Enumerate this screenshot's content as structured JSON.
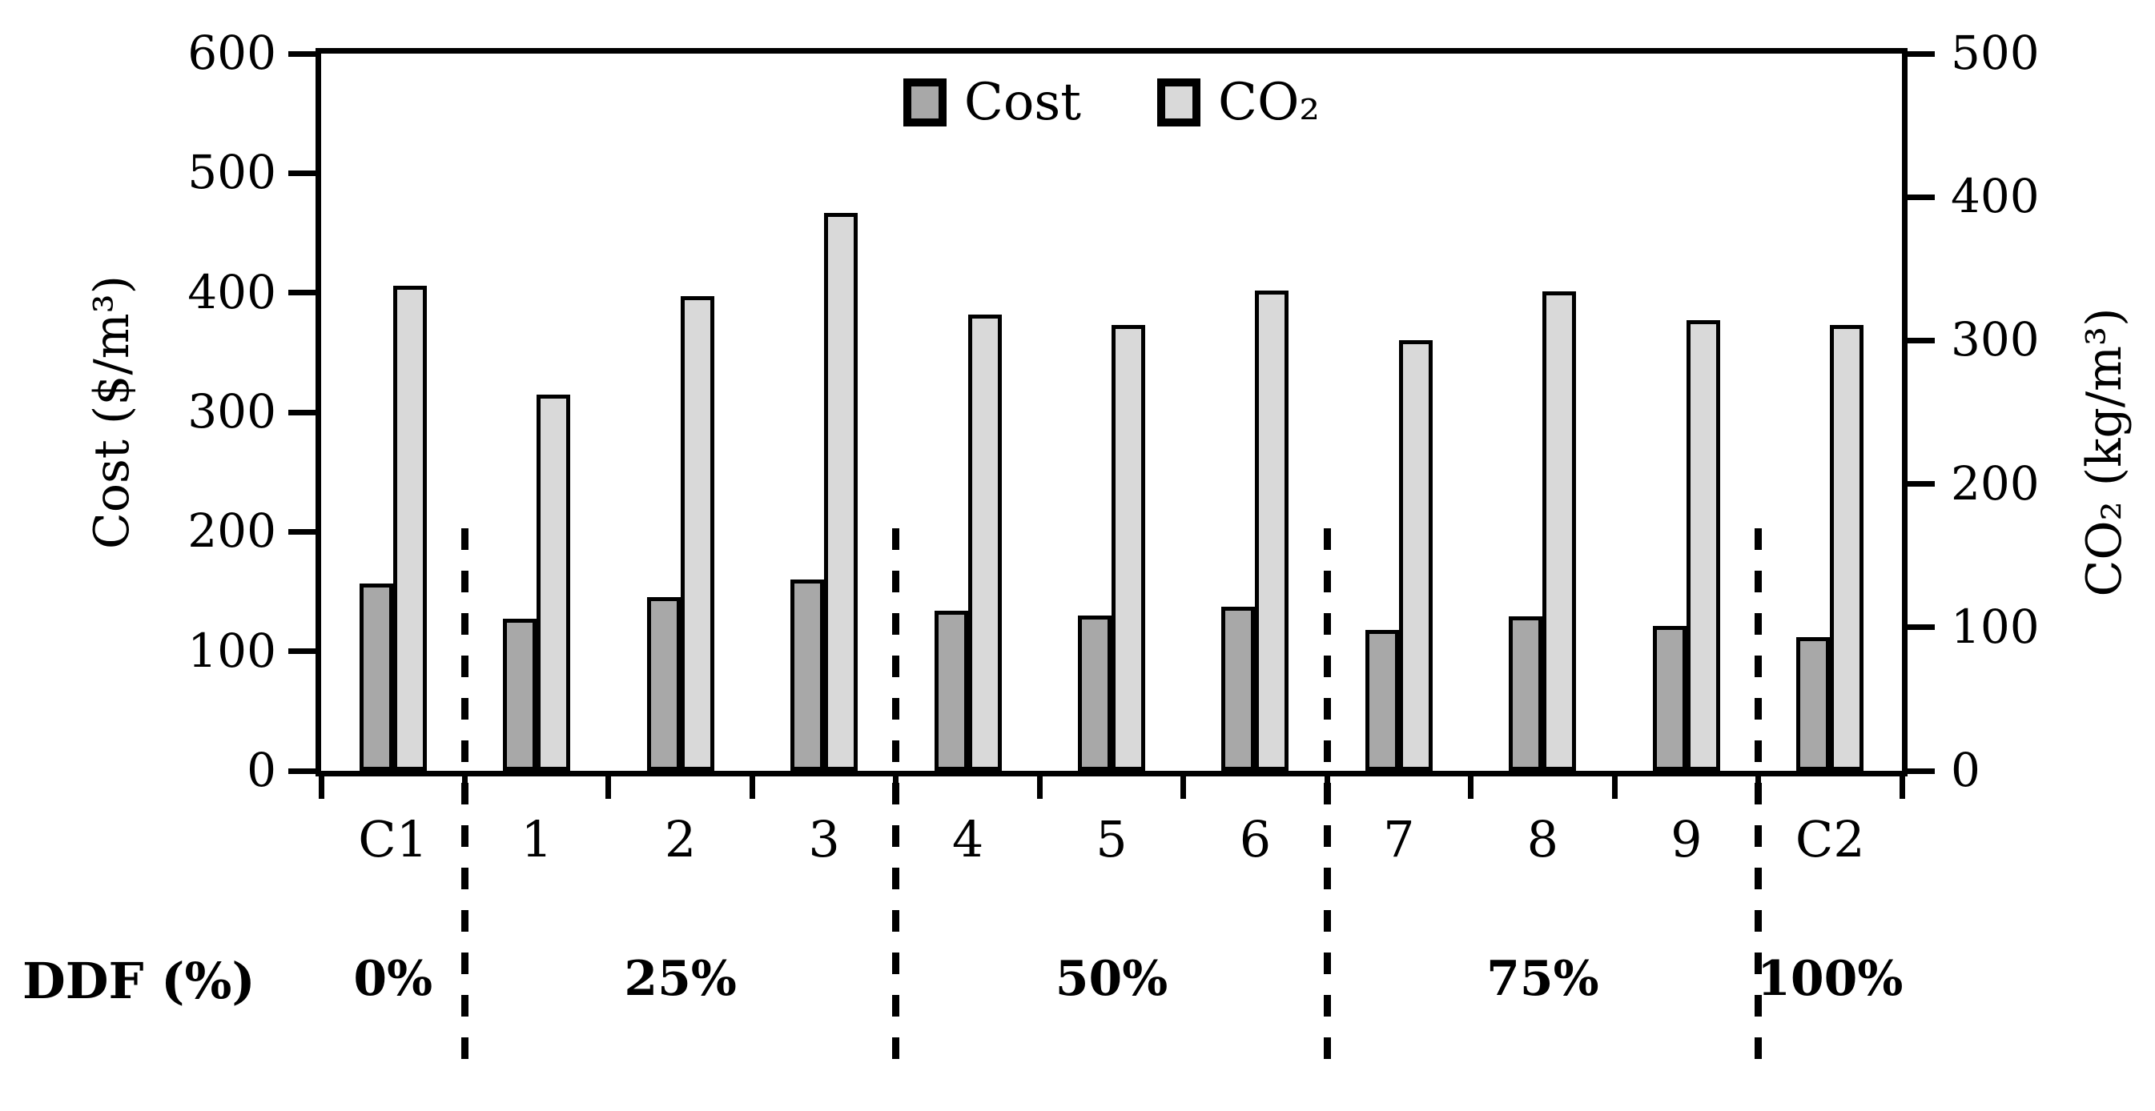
{
  "chart_data": {
    "type": "bar",
    "categories": [
      "C1",
      "1",
      "2",
      "3",
      "4",
      "5",
      "6",
      "7",
      "8",
      "9",
      "C2"
    ],
    "series": [
      {
        "name": "Cost",
        "axis": "left",
        "color": "#a8a8a8",
        "values": [
          157,
          127,
          145,
          160,
          134,
          130,
          137,
          118,
          129,
          121,
          112
        ]
      },
      {
        "name": "CO₂",
        "axis": "right",
        "color": "#d9d9d9",
        "values": [
          338,
          262,
          331,
          389,
          318,
          311,
          335,
          300,
          334,
          314,
          311
        ]
      }
    ],
    "left_axis": {
      "title": "Cost ($/m³)",
      "min": 0,
      "max": 600,
      "step": 100,
      "tick_labels": [
        "600",
        "500",
        "400",
        "300",
        "200",
        "100",
        "0"
      ]
    },
    "right_axis": {
      "title": "CO₂ (kg/m³)",
      "min": 0,
      "max": 500,
      "step": 100,
      "tick_labels": [
        "500",
        "400",
        "300",
        "200",
        "100",
        "0"
      ]
    },
    "legend": {
      "position": "top-center",
      "items": [
        {
          "label": "Cost",
          "color": "#a8a8a8"
        },
        {
          "label": "CO₂",
          "color": "#d9d9d9"
        }
      ]
    },
    "group_axis": {
      "label": "DDF (%)",
      "groups": [
        {
          "label": "0%",
          "categories": [
            "C1"
          ]
        },
        {
          "label": "25%",
          "categories": [
            "1",
            "2",
            "3"
          ]
        },
        {
          "label": "50%",
          "categories": [
            "4",
            "5",
            "6"
          ]
        },
        {
          "label": "75%",
          "categories": [
            "7",
            "8",
            "9"
          ]
        },
        {
          "label": "100%",
          "categories": [
            "C2"
          ]
        }
      ],
      "separator_style": "dashed"
    },
    "grid": false,
    "bar_outline_color": "#000000",
    "background": "#ffffff"
  }
}
